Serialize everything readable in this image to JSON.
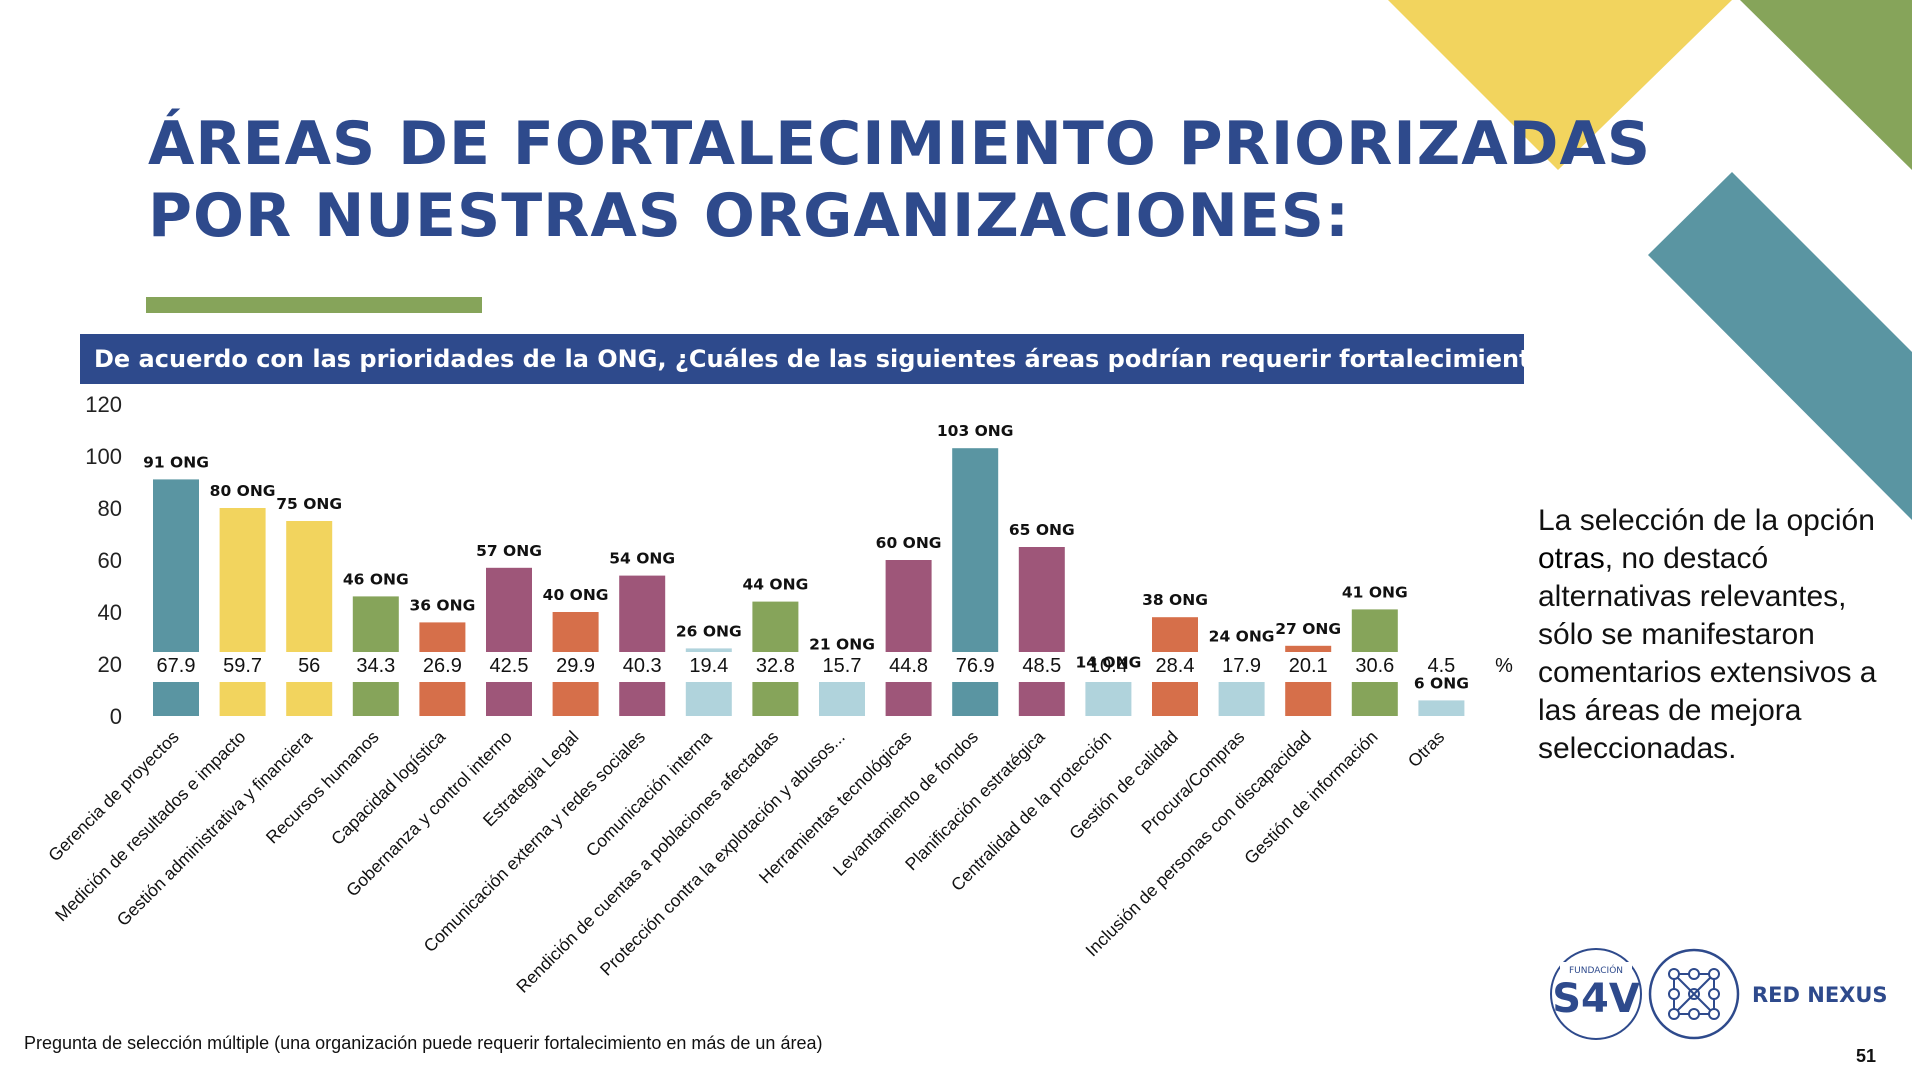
{
  "slide": {
    "title_line1": "ÁREAS DE FORTALECIMIENTO PRIORIZADAS",
    "title_line2": "POR NUESTRAS ORGANIZACIONES:",
    "question": "De acuerdo con las prioridades de la ONG, ¿Cuáles de las siguientes áreas podrían requerir fortalecimiento?",
    "side_note_pre": "La selección de la opción ",
    "side_note_emph": "otras",
    "side_note_post": ", no destacó alternativas relevantes, sólo se manifestaron comentarios extensivos a las áreas de mejora seleccionadas.",
    "footnote": "Pregunta de selección múltiple (una organización puede requerir fortalecimiento en más de un área)",
    "page_number": "51",
    "logo_s4v_small": "FUNDACIÓN",
    "logo_s4v_main": "S4V",
    "logo_nexus": "RED NEXUS"
  },
  "colors": {
    "teal": "#5a95a2",
    "yellow": "#f2d45e",
    "green": "#86a45a",
    "orange": "#d66f4a",
    "purple": "#9e5679",
    "lightblue": "#b0d3dc",
    "navy": "#2e4a8c"
  },
  "chart_data": {
    "type": "bar",
    "ylim": [
      0,
      120
    ],
    "yticks": [
      0,
      20,
      40,
      60,
      80,
      100,
      120
    ],
    "percent_symbol": "%",
    "categories": [
      "Gerencia de proyectos",
      "Medición de resultados e impacto",
      "Gestión administrativa y financiera",
      "Recursos humanos",
      "Capacidad logística",
      "Gobernanza y control interno",
      "Estrategia Legal",
      "Comunicación externa y redes sociales",
      "Comunicación interna",
      "Rendición de cuentas a poblaciones afectadas",
      "Protección contra la explotación y abusos...",
      "Herramientas tecnológicas",
      "Levantamiento de fondos",
      "Planificación estratégica",
      "Centralidad de la protección",
      "Gestión de calidad",
      "Procura/Compras",
      "Inclusión de personas con discapacidad",
      "Gestión de información",
      "Otras"
    ],
    "values": [
      91,
      80,
      75,
      46,
      36,
      57,
      40,
      54,
      26,
      44,
      21,
      60,
      103,
      65,
      14,
      38,
      24,
      27,
      41,
      6
    ],
    "value_labels": [
      "91 ONG",
      "80 ONG",
      "75 ONG",
      "46 ONG",
      "36 ONG",
      "57 ONG",
      "40 ONG",
      "54 ONG",
      "26 ONG",
      "44 ONG",
      "21 ONG",
      "60 ONG",
      "103 ONG",
      "65 ONG",
      "14 ONG",
      "38 ONG",
      "24 ONG",
      "27 ONG",
      "41 ONG",
      "6 ONG"
    ],
    "percent_labels": [
      "67.9",
      "59.7",
      "56",
      "34.3",
      "26.9",
      "42.5",
      "29.9",
      "40.3",
      "19.4",
      "32.8",
      "15.7",
      "44.8",
      "76.9",
      "48.5",
      "10.4",
      "28.4",
      "17.9",
      "20.1",
      "30.6",
      "4.5"
    ],
    "bar_colors": [
      "#5a95a2",
      "#f2d45e",
      "#f2d45e",
      "#86a45a",
      "#d66f4a",
      "#9e5679",
      "#d66f4a",
      "#9e5679",
      "#b0d3dc",
      "#86a45a",
      "#b0d3dc",
      "#9e5679",
      "#5a95a2",
      "#9e5679",
      "#b0d3dc",
      "#d66f4a",
      "#b0d3dc",
      "#d66f4a",
      "#86a45a",
      "#b0d3dc"
    ]
  }
}
